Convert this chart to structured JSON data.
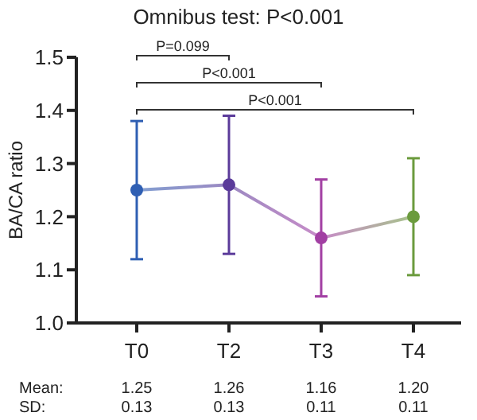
{
  "chart_data": {
    "type": "line",
    "title": "Omnibus test: P<0.001",
    "ylabel": "BA/CA ratio",
    "categories": [
      "T0",
      "T2",
      "T3",
      "T4"
    ],
    "series": [
      {
        "values": [
          1.25,
          1.26,
          1.16,
          1.2
        ],
        "errors": [
          0.13,
          0.13,
          0.11,
          0.11
        ],
        "value_labels": [
          "1.25",
          "1.26",
          "1.16",
          "1.20"
        ],
        "colors": [
          "#2f5fb3",
          "#5b3b9a",
          "#a23fa3",
          "#6b9b3d"
        ]
      }
    ],
    "ylim": [
      1.0,
      1.5
    ],
    "yticks": [
      {
        "value": 1.0,
        "label": "1.0"
      },
      1.1,
      1.2,
      1.3,
      1.4,
      1.5
    ],
    "marker": "circle",
    "grid": false,
    "legend": false,
    "annotations": [
      "P=0.099",
      "P<0.001",
      "P<0.001",
      "Mean:",
      "SD:",
      "0.13",
      "0.13",
      "0.11",
      "0.11"
    ]
  }
}
